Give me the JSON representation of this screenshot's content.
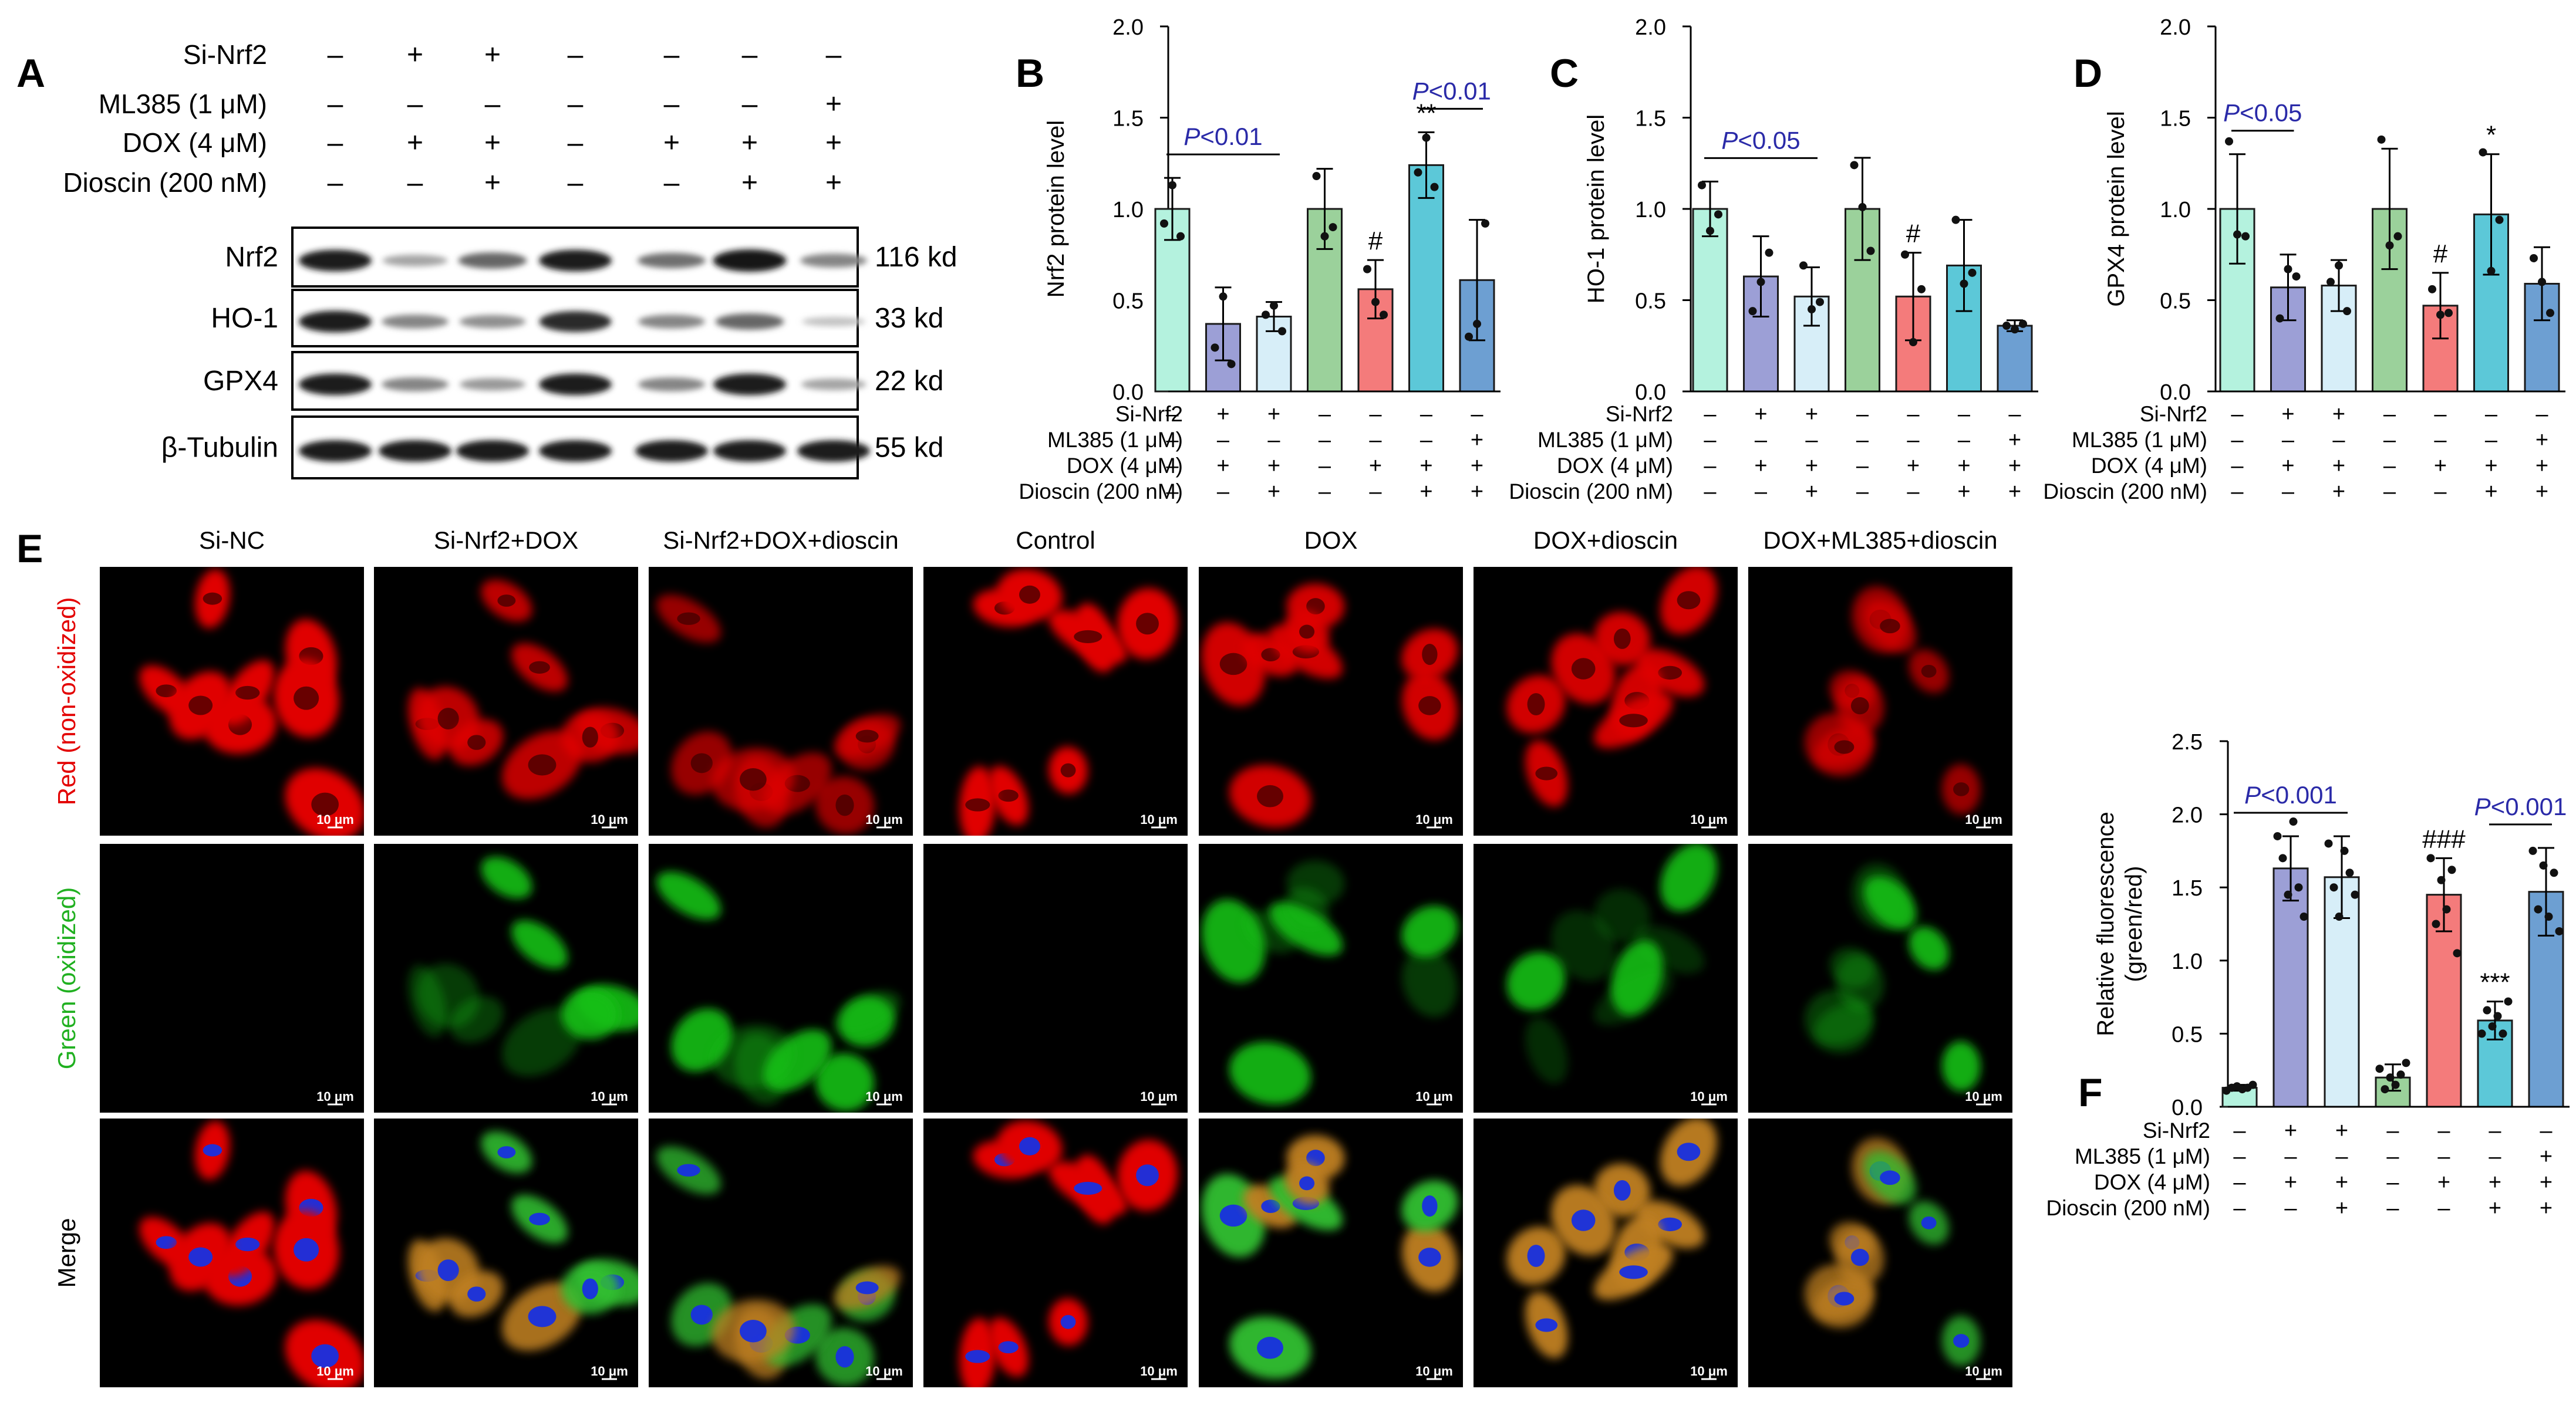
{
  "panel_letters": [
    "A",
    "B",
    "C",
    "D",
    "E",
    "F"
  ],
  "colors": {
    "bars": [
      "#b4f2de",
      "#9c9fd6",
      "#d7eef8",
      "#9bd19b",
      "#f47b7b",
      "#5cc8d8",
      "#6d9fd2"
    ],
    "pvalue": "#2a2aa8",
    "red_channel": "#e30000",
    "green_channel": "#20b020"
  },
  "conditions": {
    "labels": [
      "Si-Nrf2",
      "ML385 (1 μM)",
      "DOX (4 μM)",
      "Dioscin (200 nM)"
    ],
    "signs": [
      [
        "–",
        "+",
        "+",
        "–",
        "–",
        "–",
        "–"
      ],
      [
        "–",
        "–",
        "–",
        "–",
        "–",
        "–",
        "+"
      ],
      [
        "–",
        "+",
        "+",
        "–",
        "+",
        "+",
        "+"
      ],
      [
        "–",
        "–",
        "+",
        "–",
        "–",
        "+",
        "+"
      ]
    ]
  },
  "western": {
    "bands": [
      {
        "name": "Nrf2",
        "size": "116 kd",
        "intensity": [
          0.95,
          0.3,
          0.6,
          0.95,
          0.55,
          1.0,
          0.45
        ]
      },
      {
        "name": "HO-1",
        "size": "33 kd",
        "intensity": [
          0.95,
          0.45,
          0.4,
          0.9,
          0.45,
          0.6,
          0.15
        ]
      },
      {
        "name": "GPX4",
        "size": "22 kd",
        "intensity": [
          0.95,
          0.45,
          0.35,
          0.95,
          0.45,
          0.95,
          0.3
        ]
      },
      {
        "name": "β-Tubulin",
        "size": "55 kd",
        "intensity": [
          0.95,
          0.95,
          0.95,
          0.95,
          0.95,
          0.95,
          0.95
        ]
      }
    ]
  },
  "microscopy": {
    "columns": [
      "Si-NC",
      "Si-Nrf2+DOX",
      "Si-Nrf2+DOX+dioscin",
      "Control",
      "DOX",
      "DOX+dioscin",
      "DOX+ML385+dioscin"
    ],
    "rows": [
      "Red (non-oxidized)",
      "Green (oxidized)",
      "Merge"
    ],
    "scale_bar": "10 μm"
  },
  "chart_data": [
    {
      "type": "bar",
      "ylabel": "Nrf2 protein level",
      "ylim": [
        0,
        2.0
      ],
      "yticks": [
        0.0,
        0.5,
        1.0,
        1.5,
        2.0
      ],
      "values": [
        1.0,
        0.37,
        0.41,
        1.0,
        0.56,
        1.24,
        0.61
      ],
      "errors": [
        0.17,
        0.2,
        0.08,
        0.22,
        0.16,
        0.18,
        0.33
      ],
      "points": [
        [
          0.92,
          1.13,
          0.85
        ],
        [
          0.24,
          0.52,
          0.15
        ],
        [
          0.42,
          0.47,
          0.33
        ],
        [
          1.18,
          0.85,
          0.9
        ],
        [
          0.67,
          0.49,
          0.42
        ],
        [
          1.2,
          1.39,
          1.12
        ],
        [
          0.3,
          0.37,
          0.92
        ]
      ],
      "marks": [
        {
          "text": "#",
          "bar": 4
        },
        {
          "text": "**",
          "bar": 5
        }
      ],
      "pvalues": [
        {
          "text": "P<0.01",
          "from": 0,
          "to": 2
        },
        {
          "text": "P<0.01",
          "from": 5,
          "to": 6
        }
      ]
    },
    {
      "type": "bar",
      "ylabel": "HO-1 protein level",
      "ylim": [
        0,
        2.0
      ],
      "yticks": [
        0.0,
        0.5,
        1.0,
        1.5,
        2.0
      ],
      "values": [
        1.0,
        0.63,
        0.52,
        1.0,
        0.52,
        0.69,
        0.36
      ],
      "errors": [
        0.15,
        0.22,
        0.16,
        0.28,
        0.24,
        0.25,
        0.03
      ],
      "points": [
        [
          1.13,
          0.88,
          0.97
        ],
        [
          0.44,
          0.6,
          0.76
        ],
        [
          0.69,
          0.45,
          0.49
        ],
        [
          1.24,
          1.01,
          0.77
        ],
        [
          0.75,
          0.27,
          0.56
        ],
        [
          0.94,
          0.59,
          0.65
        ],
        [
          0.36,
          0.34,
          0.37
        ]
      ],
      "marks": [
        {
          "text": "#",
          "bar": 4
        }
      ],
      "pvalues": [
        {
          "text": "P<0.05",
          "from": 0,
          "to": 2
        }
      ]
    },
    {
      "type": "bar",
      "ylabel": "GPX4 protein level",
      "ylim": [
        0,
        2.0
      ],
      "yticks": [
        0.0,
        0.5,
        1.0,
        1.5,
        2.0
      ],
      "values": [
        1.0,
        0.57,
        0.58,
        1.0,
        0.47,
        0.97,
        0.59
      ],
      "errors": [
        0.3,
        0.18,
        0.14,
        0.33,
        0.18,
        0.33,
        0.2
      ],
      "points": [
        [
          1.37,
          0.86,
          0.85
        ],
        [
          0.4,
          0.67,
          0.63
        ],
        [
          0.6,
          0.69,
          0.44
        ],
        [
          1.38,
          0.8,
          0.85
        ],
        [
          0.56,
          0.42,
          0.43
        ],
        [
          1.31,
          0.66,
          0.94
        ],
        [
          0.73,
          0.6,
          0.43
        ]
      ],
      "marks": [
        {
          "text": "#",
          "bar": 4
        },
        {
          "text": "*",
          "bar": 5
        }
      ],
      "pvalues": [
        {
          "text": "P<0.05",
          "from": 0,
          "to": 1
        }
      ]
    },
    {
      "type": "bar",
      "ylabel": "Relative fluorescence (green/red)",
      "ylim": [
        0,
        2.5
      ],
      "yticks": [
        0.0,
        0.5,
        1.0,
        1.5,
        2.0,
        2.5
      ],
      "values": [
        0.13,
        1.63,
        1.57,
        0.2,
        1.45,
        0.59,
        1.47
      ],
      "errors": [
        0.02,
        0.22,
        0.28,
        0.09,
        0.25,
        0.13,
        0.3
      ],
      "points": [
        [
          0.11,
          0.13,
          0.14,
          0.12,
          0.13,
          0.15
        ],
        [
          1.85,
          1.7,
          1.45,
          1.95,
          1.5,
          1.3
        ],
        [
          1.8,
          1.5,
          1.3,
          1.75,
          1.6,
          1.45
        ],
        [
          0.26,
          0.12,
          0.2,
          0.15,
          0.22,
          0.3
        ],
        [
          1.7,
          1.25,
          1.55,
          1.35,
          1.62,
          1.05
        ],
        [
          0.5,
          0.66,
          0.55,
          0.62,
          0.5,
          0.72
        ],
        [
          1.75,
          1.35,
          1.65,
          1.3,
          1.6,
          1.2
        ]
      ],
      "marks": [
        {
          "text": "###",
          "bar": 4
        },
        {
          "text": "***",
          "bar": 5
        }
      ],
      "pvalues": [
        {
          "text": "P<0.001",
          "from": 0,
          "to": 2
        },
        {
          "text": "P<0.001",
          "from": 5,
          "to": 6
        }
      ]
    }
  ]
}
